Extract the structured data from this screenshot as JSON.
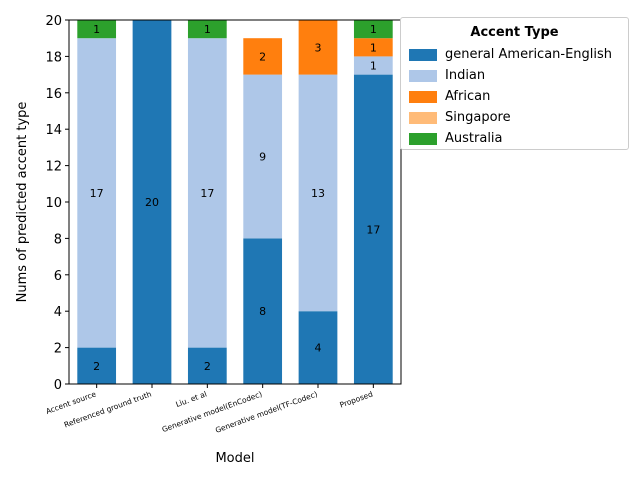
{
  "chart_data": {
    "type": "bar",
    "stacked": true,
    "categories": [
      "Accent source",
      "Referenced ground truth",
      "Liu. et al",
      "Generative model(EnCodec)",
      "Generative model(TF-Codec)",
      "Proposed"
    ],
    "series": [
      {
        "name": "general American-English",
        "color": "#1f77b4",
        "values": [
          2,
          20,
          2,
          8,
          4,
          17
        ]
      },
      {
        "name": "Indian",
        "color": "#aec7e8",
        "values": [
          17,
          0,
          17,
          9,
          13,
          1
        ]
      },
      {
        "name": "African",
        "color": "#ff7f0e",
        "values": [
          0,
          0,
          0,
          2,
          3,
          1
        ]
      },
      {
        "name": "Singapore",
        "color": "#ffbb78",
        "values": [
          0,
          0,
          0,
          0,
          0,
          0
        ]
      },
      {
        "name": "Australia",
        "color": "#2ca02c",
        "values": [
          1,
          0,
          1,
          0,
          0,
          1
        ]
      }
    ],
    "xlabel": "Model",
    "ylabel": "Nums of predicted accent type",
    "ylim": [
      0,
      20
    ],
    "yticks": [
      0,
      2,
      4,
      6,
      8,
      10,
      12,
      14,
      16,
      18,
      20
    ],
    "legend_title": "Accent Type",
    "legend_position": "outside-top-right",
    "grid": false
  }
}
